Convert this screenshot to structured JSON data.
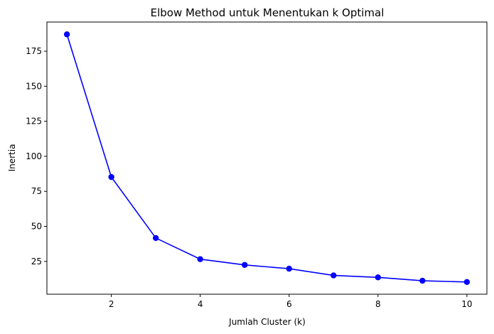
{
  "chart_data": {
    "type": "line",
    "title": "Elbow Method untuk Menentukan k Optimal",
    "xlabel": "Jumlah Cluster (k)",
    "ylabel": "Inertia",
    "x": [
      1,
      2,
      3,
      4,
      5,
      6,
      7,
      8,
      9,
      10
    ],
    "series": [
      {
        "values": [
          187.0,
          85.2,
          41.7,
          26.6,
          22.5,
          19.8,
          15.0,
          13.6,
          11.2,
          10.3
        ],
        "color": "#0000ff",
        "marker": "circle"
      }
    ],
    "xlim": [
      0.55,
      10.45
    ],
    "ylim": [
      1.6,
      195.8
    ],
    "xticks": [
      2,
      4,
      6,
      8,
      10
    ],
    "yticks": [
      25,
      50,
      75,
      100,
      125,
      150,
      175
    ],
    "grid": false,
    "legend": "none"
  }
}
